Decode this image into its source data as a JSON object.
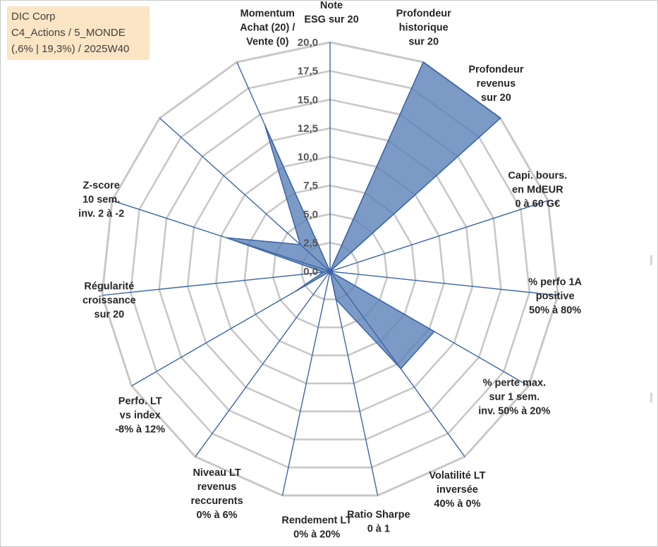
{
  "header": {
    "line1": "DIC Corp",
    "line2": "C4_Actions / 5_MONDE",
    "line3": "(,6% | 19,3%) / 2025W40"
  },
  "chart_data": {
    "type": "radar",
    "rmax": 20,
    "ticks": [
      "0,0",
      "2,5",
      "5,0",
      "7,5",
      "10,0",
      "12,5",
      "15,0",
      "17,5",
      "20,0"
    ],
    "tick_values": [
      0,
      2.5,
      5,
      7.5,
      10,
      12.5,
      15,
      17.5,
      20
    ],
    "axes": [
      {
        "label": [
          "Note",
          "ESG sur 20"
        ],
        "value": 0
      },
      {
        "label": [
          "Profondeur",
          "historique",
          "sur 20"
        ],
        "value": 20
      },
      {
        "label": [
          "Profondeur",
          "revenus",
          "sur 20"
        ],
        "value": 20
      },
      {
        "label": [
          "Capi. bours.",
          "en MdEUR",
          "0 à 60 G€"
        ],
        "value": 0
      },
      {
        "label": [
          "% perfo 1A",
          "positive",
          "50% à 80%"
        ],
        "value": 0
      },
      {
        "label": [
          "% perte max.",
          "sur 1 sem.",
          "inv. 50% à 20%"
        ],
        "value": 10.5
      },
      {
        "label": [
          "Volatilité LT",
          "inversée",
          "40% à 0%"
        ],
        "value": 10.5
      },
      {
        "label": [
          "Ratio Sharpe",
          "0 à 1"
        ],
        "value": 2.5
      },
      {
        "label": [
          "Rendement LT",
          "0% à 20%"
        ],
        "value": 0
      },
      {
        "label": [
          "Niveau LT",
          "revenus",
          "reccurents",
          "0% à 6%"
        ],
        "value": 0
      },
      {
        "label": [
          "Perfo. LT",
          "vs index",
          "-8% à 12%"
        ],
        "value": 3.5
      },
      {
        "label": [
          "Régularité",
          "croissance",
          "sur 20"
        ],
        "value": 0.6
      },
      {
        "label": [
          "Z-score",
          "10 sem.",
          "inv. 2 à -2"
        ],
        "value": 9.5
      },
      {
        "label": [
          "Z-score",
          "10 sem.",
          "inv. 2 à -2"
        ],
        "value": 3.5
      },
      {
        "label": [
          "Momentum",
          "Achat (20) /",
          "Vente (0)"
        ],
        "value": 14
      }
    ],
    "colors": {
      "fill": "#5a82b8",
      "stroke": "#3c64a8",
      "grid": "#c8c8c8",
      "spoke": "#3c64a8"
    }
  }
}
